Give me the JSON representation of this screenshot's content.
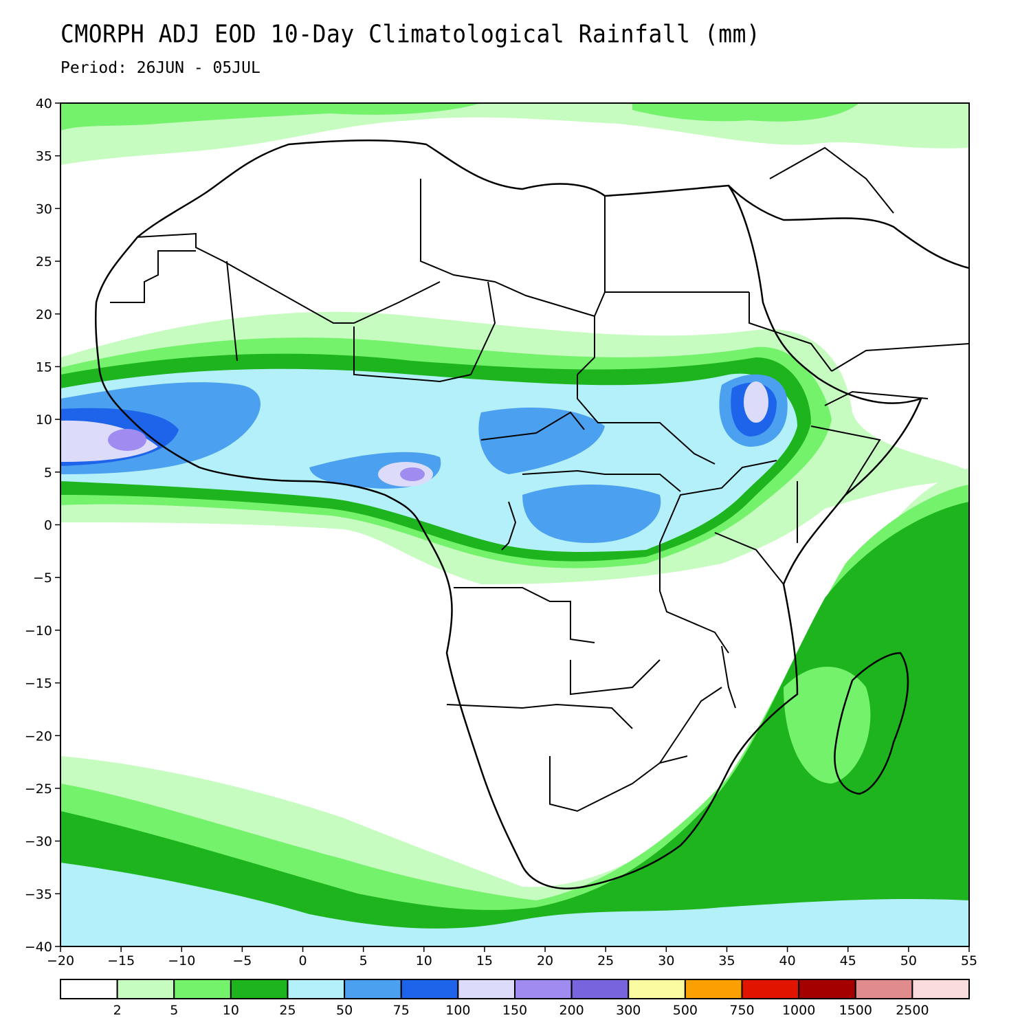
{
  "title": "CMORPH ADJ EOD 10-Day Climatological Rainfall (mm)",
  "subtitle": "Period: 26JUN - 05JUL",
  "map": {
    "lon_range": [
      -20,
      55
    ],
    "lat_range": [
      -40,
      40
    ],
    "lon_ticks": [
      "-20",
      "-15",
      "-10",
      "-5",
      "0",
      "5",
      "10",
      "15",
      "20",
      "25",
      "30",
      "35",
      "40",
      "45",
      "50",
      "55"
    ],
    "lat_ticks": [
      "40",
      "35",
      "30",
      "25",
      "20",
      "15",
      "10",
      "5",
      "0",
      "-5",
      "-10",
      "-15",
      "-20",
      "-25",
      "-30",
      "-35",
      "-40"
    ]
  },
  "legend": {
    "colors": [
      "#ffffff",
      "#c6fcc0",
      "#74f26c",
      "#1eb41e",
      "#b4f0fa",
      "#4ba0f0",
      "#1e64eb",
      "#dcdcfa",
      "#a08cf0",
      "#7864dc",
      "#fafaa0",
      "#faa000",
      "#e11400",
      "#a50000",
      "#e18c8c",
      "#fadcdc"
    ],
    "labels": [
      "2",
      "5",
      "10",
      "25",
      "50",
      "75",
      "100",
      "150",
      "200",
      "300",
      "500",
      "750",
      "1000",
      "1500",
      "2500"
    ]
  }
}
